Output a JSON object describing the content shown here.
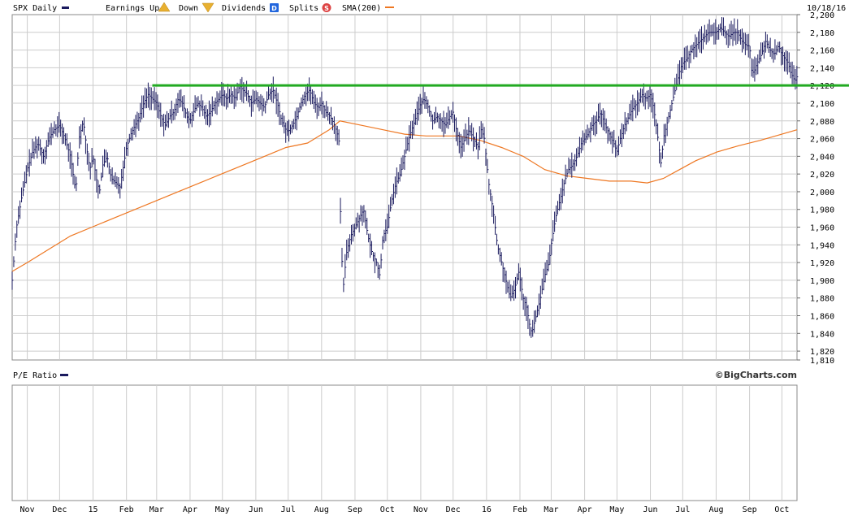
{
  "header": {
    "symbol_label": "SPX Daily",
    "earnings_label": "Earnings Up",
    "down_label": "Down",
    "dividends_label": "Dividends",
    "dividends_icon": "D",
    "splits_label": "Splits",
    "splits_icon": "S",
    "sma_label": "SMA(200)",
    "date": "10/18/16"
  },
  "lower_panel": {
    "label": "P/E Ratio",
    "credit": "©BigCharts.com"
  },
  "colors": {
    "price": "#1a1a5e",
    "sma": "#ee7722",
    "resistance": "#22aa22",
    "grid": "#cccccc",
    "earnings_up": "#e8b030",
    "dividends": "#2266dd",
    "splits": "#dd4444"
  },
  "chart_data": {
    "type": "line",
    "y_ticks": [
      "2,200",
      "2,180",
      "2,160",
      "2,140",
      "2,120",
      "2,100",
      "2,080",
      "2,060",
      "2,040",
      "2,020",
      "2,000",
      "1,980",
      "1,960",
      "1,940",
      "1,920",
      "1,900",
      "1,880",
      "1,860",
      "1,840",
      "1,820",
      "1,810"
    ],
    "ylim": [
      1810,
      2200
    ],
    "x_ticks": [
      "Nov",
      "Dec",
      "15",
      "Feb",
      "Mar",
      "Apr",
      "May",
      "Jun",
      "Jul",
      "Aug",
      "Sep",
      "Oct",
      "Nov",
      "Dec",
      "16",
      "Feb",
      "Mar",
      "Apr",
      "May",
      "Jun",
      "Jul",
      "Aug",
      "Sep",
      "Oct"
    ],
    "x_ticks_at_day": [
      0,
      30,
      61,
      92,
      120,
      151,
      181,
      212,
      242,
      273,
      304,
      334,
      365,
      395,
      426,
      457,
      486,
      517,
      547,
      578,
      608,
      639,
      670,
      700
    ],
    "xlim_days": [
      -14,
      714
    ],
    "resistance_level": 2120,
    "series": [
      {
        "name": "SPX Daily",
        "points": [
          [
            -14,
            1900
          ],
          [
            -10,
            1960
          ],
          [
            -5,
            1995
          ],
          [
            0,
            2025
          ],
          [
            5,
            2045
          ],
          [
            10,
            2055
          ],
          [
            15,
            2040
          ],
          [
            20,
            2060
          ],
          [
            25,
            2070
          ],
          [
            30,
            2075
          ],
          [
            35,
            2060
          ],
          [
            40,
            2040
          ],
          [
            45,
            2000
          ],
          [
            48,
            2060
          ],
          [
            52,
            2080
          ],
          [
            55,
            2050
          ],
          [
            58,
            2025
          ],
          [
            61,
            2040
          ],
          [
            64,
            2015
          ],
          [
            67,
            2000
          ],
          [
            70,
            2030
          ],
          [
            74,
            2040
          ],
          [
            78,
            2015
          ],
          [
            82,
            2010
          ],
          [
            86,
            2005
          ],
          [
            92,
            2050
          ],
          [
            96,
            2065
          ],
          [
            100,
            2075
          ],
          [
            104,
            2085
          ],
          [
            108,
            2100
          ],
          [
            112,
            2110
          ],
          [
            116,
            2105
          ],
          [
            120,
            2100
          ],
          [
            124,
            2085
          ],
          [
            128,
            2075
          ],
          [
            132,
            2085
          ],
          [
            136,
            2090
          ],
          [
            140,
            2105
          ],
          [
            144,
            2100
          ],
          [
            148,
            2085
          ],
          [
            151,
            2080
          ],
          [
            154,
            2090
          ],
          [
            158,
            2100
          ],
          [
            162,
            2095
          ],
          [
            166,
            2085
          ],
          [
            170,
            2090
          ],
          [
            174,
            2100
          ],
          [
            178,
            2105
          ],
          [
            181,
            2110
          ],
          [
            185,
            2105
          ],
          [
            189,
            2110
          ],
          [
            193,
            2105
          ],
          [
            197,
            2120
          ],
          [
            200,
            2115
          ],
          [
            204,
            2110
          ],
          [
            208,
            2100
          ],
          [
            212,
            2105
          ],
          [
            216,
            2100
          ],
          [
            220,
            2095
          ],
          [
            224,
            2110
          ],
          [
            228,
            2115
          ],
          [
            232,
            2100
          ],
          [
            236,
            2080
          ],
          [
            240,
            2070
          ],
          [
            242,
            2068
          ],
          [
            246,
            2075
          ],
          [
            250,
            2085
          ],
          [
            254,
            2100
          ],
          [
            258,
            2110
          ],
          [
            262,
            2115
          ],
          [
            266,
            2100
          ],
          [
            270,
            2095
          ],
          [
            273,
            2100
          ],
          [
            277,
            2090
          ],
          [
            281,
            2085
          ],
          [
            285,
            2075
          ],
          [
            289,
            2060
          ],
          [
            291,
            1950
          ],
          [
            293,
            1890
          ],
          [
            296,
            1930
          ],
          [
            300,
            1950
          ],
          [
            304,
            1960
          ],
          [
            308,
            1970
          ],
          [
            312,
            1980
          ],
          [
            316,
            1950
          ],
          [
            320,
            1930
          ],
          [
            324,
            1920
          ],
          [
            327,
            1905
          ],
          [
            330,
            1950
          ],
          [
            334,
            1960
          ],
          [
            338,
            1990
          ],
          [
            342,
            2010
          ],
          [
            346,
            2020
          ],
          [
            350,
            2040
          ],
          [
            354,
            2060
          ],
          [
            358,
            2075
          ],
          [
            362,
            2090
          ],
          [
            365,
            2100
          ],
          [
            368,
            2105
          ],
          [
            372,
            2095
          ],
          [
            376,
            2080
          ],
          [
            380,
            2085
          ],
          [
            384,
            2080
          ],
          [
            388,
            2075
          ],
          [
            392,
            2085
          ],
          [
            395,
            2090
          ],
          [
            398,
            2070
          ],
          [
            402,
            2050
          ],
          [
            406,
            2060
          ],
          [
            410,
            2070
          ],
          [
            414,
            2060
          ],
          [
            418,
            2050
          ],
          [
            421,
            2070
          ],
          [
            424,
            2060
          ],
          [
            428,
            2010
          ],
          [
            432,
            1980
          ],
          [
            436,
            1940
          ],
          [
            440,
            1920
          ],
          [
            444,
            1900
          ],
          [
            448,
            1880
          ],
          [
            452,
            1890
          ],
          [
            456,
            1910
          ],
          [
            460,
            1880
          ],
          [
            463,
            1870
          ],
          [
            466,
            1850
          ],
          [
            468,
            1840
          ],
          [
            472,
            1860
          ],
          [
            476,
            1880
          ],
          [
            480,
            1905
          ],
          [
            484,
            1920
          ],
          [
            486,
            1940
          ],
          [
            490,
            1970
          ],
          [
            494,
            1990
          ],
          [
            498,
            2010
          ],
          [
            502,
            2025
          ],
          [
            506,
            2030
          ],
          [
            510,
            2040
          ],
          [
            514,
            2055
          ],
          [
            517,
            2060
          ],
          [
            520,
            2065
          ],
          [
            524,
            2075
          ],
          [
            528,
            2080
          ],
          [
            532,
            2090
          ],
          [
            536,
            2075
          ],
          [
            540,
            2065
          ],
          [
            544,
            2055
          ],
          [
            547,
            2045
          ],
          [
            550,
            2060
          ],
          [
            554,
            2075
          ],
          [
            558,
            2085
          ],
          [
            562,
            2095
          ],
          [
            566,
            2100
          ],
          [
            570,
            2110
          ],
          [
            574,
            2105
          ],
          [
            578,
            2110
          ],
          [
            581,
            2095
          ],
          [
            584,
            2070
          ],
          [
            586,
            2050
          ],
          [
            588,
            2030
          ],
          [
            590,
            2060
          ],
          [
            594,
            2080
          ],
          [
            598,
            2100
          ],
          [
            602,
            2120
          ],
          [
            606,
            2140
          ],
          [
            608,
            2145
          ],
          [
            612,
            2150
          ],
          [
            616,
            2160
          ],
          [
            620,
            2165
          ],
          [
            624,
            2170
          ],
          [
            628,
            2175
          ],
          [
            632,
            2180
          ],
          [
            636,
            2180
          ],
          [
            639,
            2180
          ],
          [
            643,
            2185
          ],
          [
            647,
            2180
          ],
          [
            651,
            2175
          ],
          [
            655,
            2180
          ],
          [
            659,
            2180
          ],
          [
            663,
            2170
          ],
          [
            667,
            2165
          ],
          [
            670,
            2165
          ],
          [
            672,
            2135
          ],
          [
            674,
            2135
          ],
          [
            677,
            2145
          ],
          [
            681,
            2155
          ],
          [
            685,
            2170
          ],
          [
            689,
            2160
          ],
          [
            693,
            2155
          ],
          [
            697,
            2165
          ],
          [
            700,
            2155
          ],
          [
            703,
            2150
          ],
          [
            706,
            2145
          ],
          [
            708,
            2135
          ],
          [
            710,
            2130
          ],
          [
            712,
            2125
          ],
          [
            714,
            2130
          ]
        ]
      },
      {
        "name": "SMA(200)",
        "points": [
          [
            -14,
            1910
          ],
          [
            0,
            1920
          ],
          [
            20,
            1935
          ],
          [
            40,
            1950
          ],
          [
            60,
            1960
          ],
          [
            80,
            1970
          ],
          [
            100,
            1980
          ],
          [
            120,
            1990
          ],
          [
            140,
            2000
          ],
          [
            160,
            2010
          ],
          [
            180,
            2020
          ],
          [
            200,
            2030
          ],
          [
            220,
            2040
          ],
          [
            240,
            2050
          ],
          [
            260,
            2055
          ],
          [
            280,
            2070
          ],
          [
            290,
            2080
          ],
          [
            310,
            2075
          ],
          [
            330,
            2070
          ],
          [
            350,
            2065
          ],
          [
            370,
            2063
          ],
          [
            400,
            2063
          ],
          [
            420,
            2058
          ],
          [
            440,
            2050
          ],
          [
            460,
            2040
          ],
          [
            480,
            2025
          ],
          [
            500,
            2018
          ],
          [
            520,
            2015
          ],
          [
            540,
            2012
          ],
          [
            560,
            2012
          ],
          [
            575,
            2010
          ],
          [
            590,
            2015
          ],
          [
            605,
            2025
          ],
          [
            620,
            2035
          ],
          [
            640,
            2045
          ],
          [
            660,
            2052
          ],
          [
            680,
            2058
          ],
          [
            700,
            2065
          ],
          [
            714,
            2070
          ]
        ]
      }
    ]
  }
}
